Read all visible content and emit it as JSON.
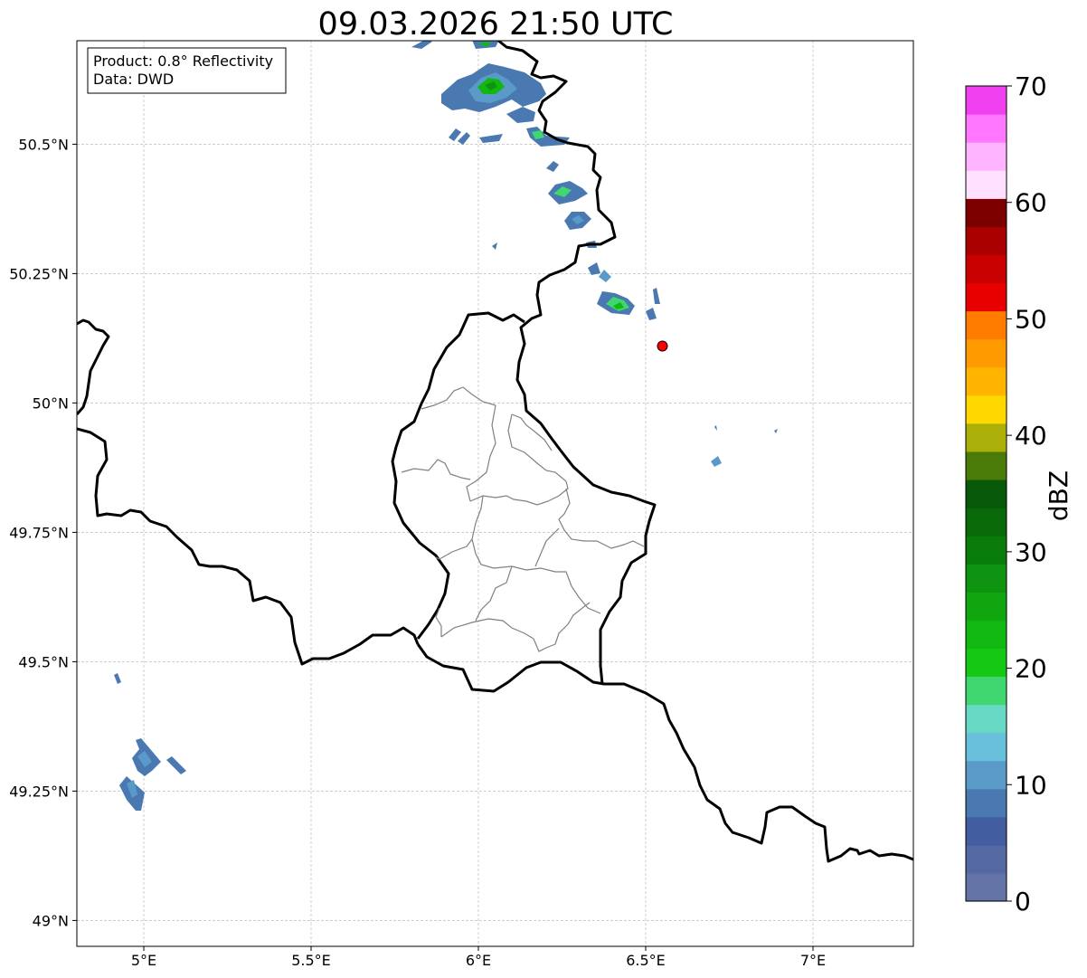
{
  "title": "09.03.2026 21:50 UTC",
  "info": {
    "product": "Product: 0.8° Reflectivity",
    "data": "Data: DWD"
  },
  "map": {
    "lon_range": [
      4.8,
      7.3
    ],
    "lat_range": [
      48.95,
      50.7
    ],
    "x_ticks": [
      {
        "v": 5.0,
        "label": "5°E"
      },
      {
        "v": 5.5,
        "label": "5.5°E"
      },
      {
        "v": 6.0,
        "label": "6°E"
      },
      {
        "v": 6.5,
        "label": "6.5°E"
      },
      {
        "v": 7.0,
        "label": "7°E"
      }
    ],
    "y_ticks": [
      {
        "v": 49.0,
        "label": "49°N"
      },
      {
        "v": 49.25,
        "label": "49.25°N"
      },
      {
        "v": 49.5,
        "label": "49.5°N"
      },
      {
        "v": 49.75,
        "label": "49.75°N"
      },
      {
        "v": 50.0,
        "label": "50°N"
      },
      {
        "v": 50.25,
        "label": "50.25°N"
      },
      {
        "v": 50.5,
        "label": "50.5°N"
      }
    ],
    "grid": true,
    "marker": {
      "lon": 6.55,
      "lat": 50.11,
      "color": "#ff0000"
    }
  },
  "colorbar": {
    "label": "dBZ",
    "min": 0,
    "max": 70,
    "ticks": [
      0,
      10,
      20,
      30,
      40,
      50,
      60,
      70
    ],
    "colors": [
      "#6474a6",
      "#5468a2",
      "#425da0",
      "#4a78b0",
      "#5a9ac8",
      "#68c0dc",
      "#66d8c4",
      "#40d670",
      "#14c814",
      "#12b812",
      "#10a610",
      "#0e9410",
      "#0a7c0a",
      "#0a6a0a",
      "#075808",
      "#4a7a08",
      "#aab008",
      "#ffd800",
      "#ffb400",
      "#ff9a00",
      "#ff7c00",
      "#e80000",
      "#c80000",
      "#aa0000",
      "#7c0000",
      "#ffe0ff",
      "#ffb4ff",
      "#ff78ff",
      "#f040f0"
    ]
  }
}
